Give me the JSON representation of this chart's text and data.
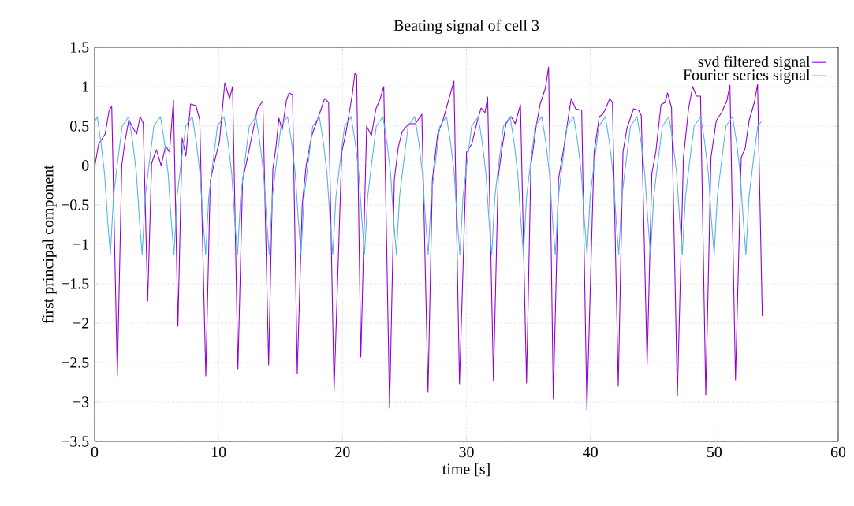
{
  "chart_data": {
    "type": "line",
    "title": "Beating signal of cell 3",
    "xlabel": "time [s]",
    "ylabel": "first principal component",
    "xlim": [
      0,
      60
    ],
    "ylim": [
      -3.5,
      1.5
    ],
    "xticks": [
      0,
      10,
      20,
      30,
      40,
      50,
      60
    ],
    "yticks": [
      {
        "value": -3.5,
        "label": "−3.5"
      },
      {
        "value": -3,
        "label": "−3"
      },
      {
        "value": -2.5,
        "label": "−2.5"
      },
      {
        "value": -2,
        "label": "−2"
      },
      {
        "value": -1.5,
        "label": "−1.5"
      },
      {
        "value": -1,
        "label": "−1"
      },
      {
        "value": -0.5,
        "label": "−0.5"
      },
      0,
      0.5,
      1,
      1.5
    ],
    "grid": true,
    "legend": "top right",
    "series": [
      {
        "name": "svd filtered signal",
        "color": "#9400d3",
        "x": [
          0,
          0.32,
          0.85,
          1.17,
          1.38,
          1.83,
          2.19,
          2.44,
          2.76,
          3.08,
          3.39,
          3.67,
          3.92,
          4.28,
          4.6,
          4.98,
          5.37,
          5.73,
          6.04,
          6.36,
          6.72,
          7.06,
          7.36,
          7.74,
          8.17,
          8.48,
          8.97,
          9.33,
          9.75,
          10.07,
          10.5,
          10.88,
          11.13,
          11.56,
          11.94,
          12.3,
          12.72,
          13.15,
          13.57,
          14.04,
          14.38,
          14.63,
          14.87,
          15.13,
          15.48,
          15.69,
          15.97,
          16.35,
          16.75,
          17.07,
          17.5,
          18.13,
          18.56,
          18.88,
          19.32,
          19.94,
          20.26,
          20.79,
          21.0,
          21.14,
          21.48,
          21.95,
          22.33,
          22.7,
          23.01,
          23.33,
          23.8,
          24.18,
          24.5,
          24.81,
          25.35,
          25.88,
          26.4,
          26.9,
          27.25,
          27.68,
          28.1,
          28.63,
          28.99,
          29.44,
          30.01,
          30.43,
          30.86,
          31.18,
          31.5,
          31.71,
          32.18,
          32.56,
          32.87,
          33.19,
          33.61,
          33.93,
          34.36,
          34.85,
          35.2,
          35.63,
          35.95,
          36.37,
          36.63,
          37.01,
          37.43,
          37.86,
          38.18,
          38.45,
          38.81,
          39.3,
          39.72,
          40.3,
          40.72,
          41.0,
          41.25,
          41.57,
          41.78,
          42.25,
          42.63,
          42.95,
          43.48,
          43.9,
          44.11,
          44.58,
          44.96,
          45.28,
          45.7,
          46.02,
          46.23,
          46.55,
          47.02,
          47.51,
          47.93,
          48.25,
          48.57,
          48.89,
          49.31,
          49.73,
          50.16,
          50.58,
          51.01,
          51.26,
          51.71,
          52.17,
          52.49,
          52.81,
          53.23,
          53.49,
          53.87
        ],
        "values": [
          -0.02,
          0.27,
          0.4,
          0.7,
          0.75,
          -2.67,
          0.0,
          0.3,
          0.58,
          0.48,
          0.4,
          0.62,
          0.54,
          -1.72,
          0.03,
          0.2,
          0.0,
          0.25,
          0.17,
          0.83,
          -2.04,
          0.35,
          0.12,
          0.78,
          0.76,
          0.58,
          -2.67,
          -0.2,
          0.1,
          0.3,
          1.05,
          0.85,
          1.0,
          -2.58,
          -0.18,
          0.07,
          0.4,
          0.72,
          0.82,
          -2.53,
          -0.05,
          0.23,
          0.6,
          0.45,
          0.83,
          0.92,
          0.9,
          -2.64,
          -0.5,
          0.0,
          0.37,
          0.65,
          0.85,
          0.8,
          -2.86,
          0.17,
          0.4,
          0.9,
          1.17,
          1.15,
          -2.43,
          0.5,
          0.38,
          0.72,
          0.83,
          1.0,
          -3.08,
          -0.18,
          0.23,
          0.43,
          0.53,
          0.53,
          0.65,
          -2.87,
          -0.18,
          0.4,
          0.57,
          0.87,
          1.07,
          -2.77,
          0.17,
          0.27,
          0.55,
          0.73,
          0.67,
          0.87,
          -2.73,
          -0.15,
          0.22,
          0.53,
          0.62,
          0.53,
          0.77,
          -2.76,
          0.0,
          0.5,
          0.78,
          0.98,
          1.25,
          -2.96,
          -0.17,
          0.23,
          0.57,
          0.85,
          0.72,
          0.7,
          -3.1,
          0.17,
          0.62,
          0.65,
          0.73,
          0.85,
          0.8,
          -2.8,
          0.17,
          0.47,
          0.72,
          0.7,
          0.63,
          -2.52,
          -0.1,
          0.17,
          0.77,
          0.8,
          0.92,
          0.73,
          -2.92,
          0.1,
          0.73,
          1.0,
          0.88,
          0.88,
          -2.91,
          0.1,
          0.57,
          0.67,
          0.82,
          1.02,
          -2.72,
          0.1,
          0.22,
          0.57,
          0.8,
          1.03,
          -1.91
        ]
      },
      {
        "name": "Fourier series signal",
        "color": "#56b4e9",
        "x": [
          0,
          0.21,
          0.5,
          0.8,
          1.05,
          1.27,
          1.52,
          1.82,
          2.22,
          2.75,
          3.07,
          3.37,
          3.62,
          3.83,
          4.08,
          4.38,
          4.78,
          5.31,
          5.63,
          5.93,
          6.18,
          6.4,
          6.65,
          6.95,
          7.35,
          7.88,
          8.2,
          8.5,
          8.75,
          8.96,
          9.21,
          9.51,
          9.91,
          10.44,
          10.76,
          11.06,
          11.31,
          11.53,
          11.78,
          12.08,
          12.48,
          13.01,
          13.33,
          13.63,
          13.88,
          14.09,
          14.34,
          14.64,
          15.04,
          15.57,
          15.89,
          16.19,
          16.44,
          16.65,
          16.9,
          17.2,
          17.6,
          18.13,
          18.45,
          18.75,
          19.0,
          19.22,
          19.47,
          19.77,
          20.17,
          20.7,
          21.02,
          21.32,
          21.57,
          21.78,
          22.03,
          22.33,
          22.73,
          23.26,
          23.58,
          23.88,
          24.13,
          24.35,
          24.6,
          24.9,
          25.3,
          25.83,
          26.15,
          26.45,
          26.7,
          26.91,
          27.16,
          27.46,
          27.86,
          28.39,
          28.71,
          29.01,
          29.26,
          29.47,
          29.72,
          30.02,
          30.42,
          30.95,
          31.27,
          31.57,
          31.82,
          32.04,
          32.29,
          32.59,
          32.99,
          33.52,
          33.84,
          34.14,
          34.39,
          34.6,
          34.85,
          35.15,
          35.55,
          36.08,
          36.4,
          36.7,
          36.95,
          37.17,
          37.42,
          37.72,
          38.12,
          38.65,
          38.97,
          39.27,
          39.52,
          39.73,
          39.98,
          40.28,
          40.68,
          41.21,
          41.53,
          41.83,
          42.08,
          42.29,
          42.54,
          42.84,
          43.24,
          43.77,
          44.09,
          44.39,
          44.64,
          44.86,
          45.11,
          45.41,
          45.81,
          46.34,
          46.66,
          46.96,
          47.21,
          47.42,
          47.67,
          47.97,
          48.37,
          48.9,
          49.22,
          49.52,
          49.77,
          49.99,
          50.24,
          50.54,
          50.94,
          51.47,
          51.79,
          52.09,
          52.34,
          52.55,
          52.8,
          53.1,
          53.5,
          53.86
        ],
        "values": [
          0.55,
          0.62,
          0.3,
          -0.1,
          -0.7,
          -1.13,
          -0.4,
          0.0,
          0.5,
          0.62,
          0.3,
          -0.1,
          -0.7,
          -1.13,
          -0.4,
          0.0,
          0.5,
          0.62,
          0.3,
          -0.1,
          -0.7,
          -1.13,
          -0.4,
          0.0,
          0.5,
          0.62,
          0.3,
          -0.1,
          -0.7,
          -1.13,
          -0.4,
          0.0,
          0.5,
          0.62,
          0.3,
          -0.1,
          -0.7,
          -1.13,
          -0.4,
          0.0,
          0.5,
          0.62,
          0.3,
          -0.1,
          -0.7,
          -1.13,
          -0.4,
          0.0,
          0.5,
          0.62,
          0.3,
          -0.1,
          -0.7,
          -1.13,
          -0.4,
          0.0,
          0.5,
          0.62,
          0.3,
          -0.1,
          -0.7,
          -1.13,
          -0.4,
          0.0,
          0.5,
          0.62,
          0.3,
          -0.1,
          -0.7,
          -1.13,
          -0.4,
          0.0,
          0.5,
          0.62,
          0.3,
          -0.1,
          -0.7,
          -1.13,
          -0.4,
          0.0,
          0.5,
          0.62,
          0.3,
          -0.1,
          -0.7,
          -1.13,
          -0.4,
          0.0,
          0.5,
          0.62,
          0.3,
          -0.1,
          -0.7,
          -1.13,
          -0.4,
          0.0,
          0.5,
          0.62,
          0.3,
          -0.1,
          -0.7,
          -1.13,
          -0.4,
          0.0,
          0.5,
          0.62,
          0.3,
          -0.1,
          -0.7,
          -1.13,
          -0.4,
          0.0,
          0.5,
          0.62,
          0.3,
          -0.1,
          -0.7,
          -1.13,
          -0.4,
          0.0,
          0.5,
          0.62,
          0.3,
          -0.1,
          -0.7,
          -1.13,
          -0.4,
          0.0,
          0.5,
          0.62,
          0.3,
          -0.1,
          -0.7,
          -1.13,
          -0.4,
          0.0,
          0.5,
          0.62,
          0.3,
          -0.1,
          -0.7,
          -1.13,
          -0.4,
          0.0,
          0.5,
          0.62,
          0.3,
          -0.1,
          -0.7,
          -1.13,
          -0.4,
          0.0,
          0.5,
          0.62,
          0.3,
          -0.1,
          -0.7,
          -1.13,
          -0.4,
          0.0,
          0.5,
          0.62,
          0.3,
          -0.1,
          -0.7,
          -1.13,
          -0.4,
          0.0,
          0.5,
          0.57
        ]
      }
    ]
  }
}
